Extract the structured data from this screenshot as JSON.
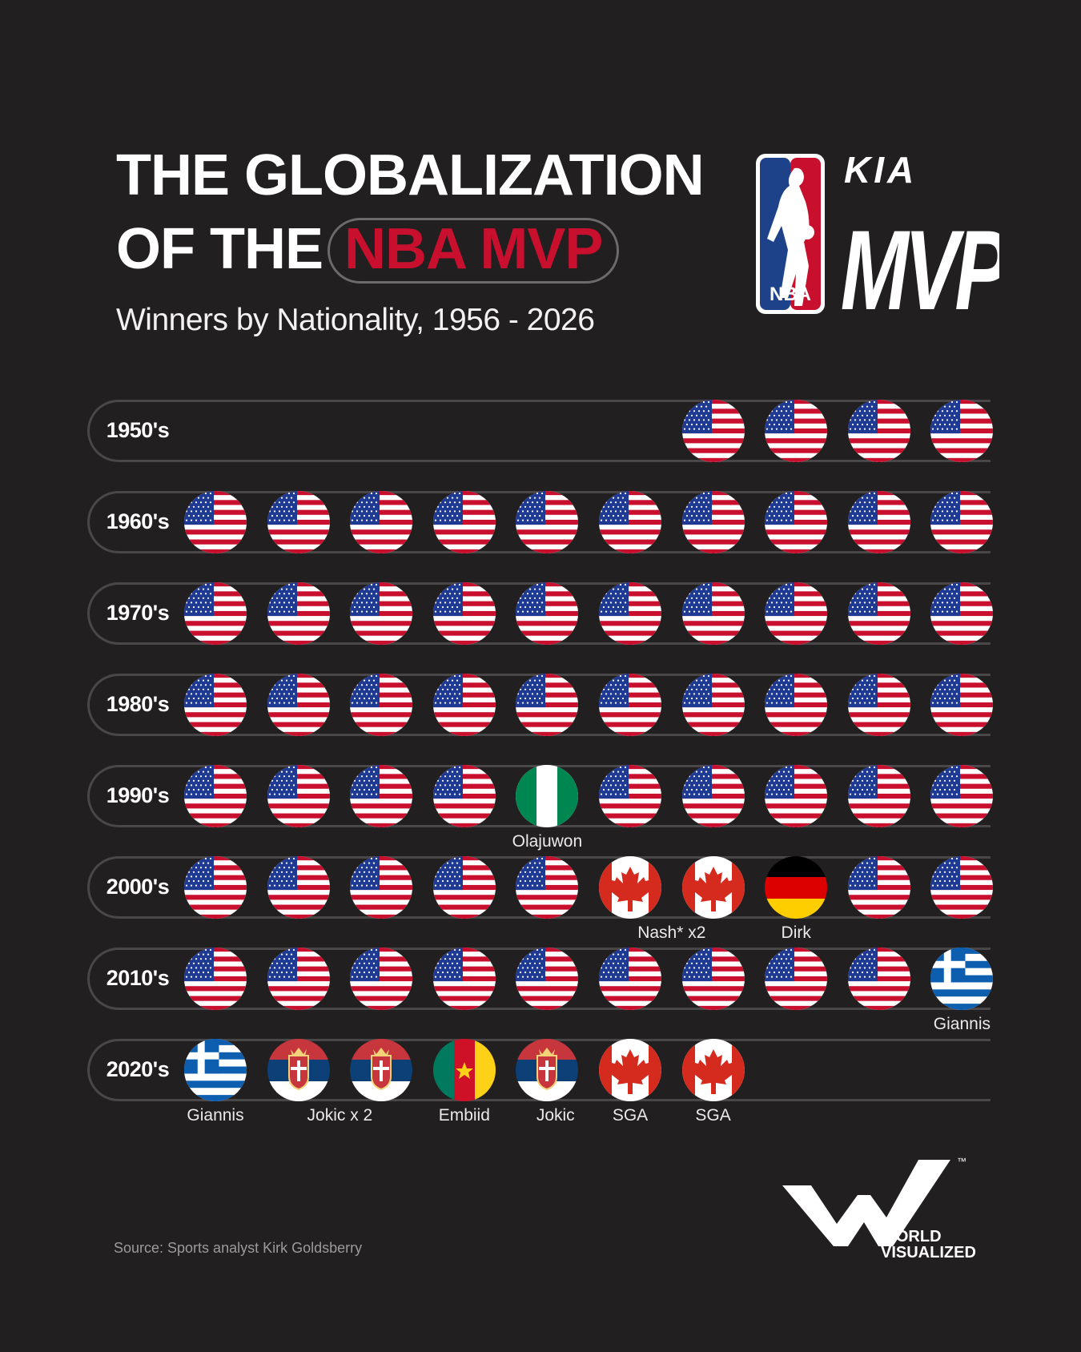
{
  "title": {
    "line1": "THE GLOBALIZATION",
    "line2_prefix": "OF THE",
    "line2_highlight": "NBA MVP"
  },
  "subtitle": "Winners by Nationality, 1956 - 2026",
  "logos": {
    "nba_text": "NBA",
    "kia_text": "KIA",
    "mvp_text": "MVP",
    "wv_line1": "WORLD",
    "wv_line2": "VISUALIZED",
    "wv_tm": "™"
  },
  "source": "Source: Sports analyst Kirk Goldsberry",
  "colors": {
    "background": "#221f20",
    "highlight": "#c8102e",
    "usa_red": "#c8102e",
    "usa_blue": "#1f3a93"
  },
  "chart_data": {
    "type": "table",
    "title": "THE GLOBALIZATION OF THE NBA MVP",
    "subtitle": "Winners by Nationality, 1956 - 2026",
    "rows": [
      {
        "decade": "1950's",
        "align": "right",
        "winners": [
          "USA",
          "USA",
          "USA",
          "USA"
        ],
        "labels": []
      },
      {
        "decade": "1960's",
        "align": "left",
        "winners": [
          "USA",
          "USA",
          "USA",
          "USA",
          "USA",
          "USA",
          "USA",
          "USA",
          "USA",
          "USA"
        ],
        "labels": []
      },
      {
        "decade": "1970's",
        "align": "left",
        "winners": [
          "USA",
          "USA",
          "USA",
          "USA",
          "USA",
          "USA",
          "USA",
          "USA",
          "USA",
          "USA"
        ],
        "labels": []
      },
      {
        "decade": "1980's",
        "align": "left",
        "winners": [
          "USA",
          "USA",
          "USA",
          "USA",
          "USA",
          "USA",
          "USA",
          "USA",
          "USA",
          "USA"
        ],
        "labels": []
      },
      {
        "decade": "1990's",
        "align": "left",
        "winners": [
          "USA",
          "USA",
          "USA",
          "USA",
          "Nigeria",
          "USA",
          "USA",
          "USA",
          "USA",
          "USA"
        ],
        "labels": [
          {
            "text": "Olajuwon",
            "at": 4
          }
        ]
      },
      {
        "decade": "2000's",
        "align": "left",
        "winners": [
          "USA",
          "USA",
          "USA",
          "USA",
          "USA",
          "Canada",
          "Canada",
          "Germany",
          "USA",
          "USA"
        ],
        "labels": [
          {
            "text": "Nash* x2",
            "at": 5.5
          },
          {
            "text": "Dirk",
            "at": 7
          }
        ]
      },
      {
        "decade": "2010's",
        "align": "left",
        "winners": [
          "USA",
          "USA",
          "USA",
          "USA",
          "USA",
          "USA",
          "USA",
          "USA",
          "USA",
          "Greece"
        ],
        "labels": [
          {
            "text": "Giannis",
            "at": 9
          }
        ]
      },
      {
        "decade": "2020's",
        "align": "left",
        "winners": [
          "Greece",
          "Serbia",
          "Serbia",
          "Cameroon",
          "Serbia",
          "Canada",
          "Canada"
        ],
        "labels": [
          {
            "text": "Giannis",
            "at": 0
          },
          {
            "text": "Jokic x 2",
            "at": 1.5
          },
          {
            "text": "Embiid",
            "at": 3
          },
          {
            "text": "Jokic",
            "at": 4.1
          },
          {
            "text": "SGA",
            "at": 5
          },
          {
            "text": "SGA",
            "at": 6
          }
        ]
      }
    ]
  }
}
